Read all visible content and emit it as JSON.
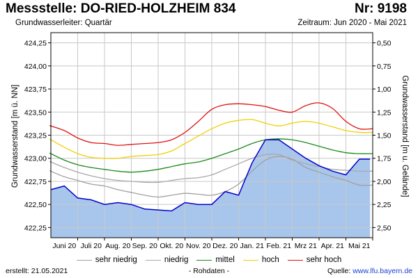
{
  "header": {
    "title": "Messstelle: DO-RIED-HOLZHEIM 834",
    "number": "Nr: 9198",
    "aquifer": "Grundwasserleiter: Quartär",
    "period": "Zeitraum: Jun 2020 - Mai 2021"
  },
  "footer": {
    "created_label": "erstellt:",
    "created_date": "21.05.2021",
    "raw_data": "- Rohdaten -",
    "source_label": "Quelle:",
    "source_url": "www.lfu.bayern.de"
  },
  "chart_data": {
    "type": "line",
    "ylabel": "Grundwasserstand [m ü. NN]",
    "y2label": "Grundwasserstand [m u. Gelände]",
    "ylim": [
      422.14,
      424.36
    ],
    "yticks": [
      "424,25",
      "424,00",
      "423,75",
      "423,50",
      "423,25",
      "423,00",
      "422,75",
      "422,50",
      "422,25"
    ],
    "ytick_values": [
      424.25,
      424.0,
      423.75,
      423.5,
      423.25,
      423.0,
      422.75,
      422.5,
      422.25
    ],
    "y2ticks": [
      "0,50",
      "0,75",
      "1,00",
      "1,25",
      "1,50",
      "1,75",
      "2,00",
      "2,25",
      "2,50"
    ],
    "categories": [
      "Juni 20",
      "Juli 20",
      "Aug. 20",
      "Sep. 20",
      "Okt. 20",
      "Nov. 20",
      "Dez. 20",
      "Jan. 21",
      "Feb. 21",
      "Mrz 21",
      "Apr. 21",
      "Mai 21"
    ],
    "grid": true,
    "legend_position": "bottom",
    "x": [
      0,
      0.5,
      1,
      1.5,
      2,
      2.5,
      3,
      3.5,
      4,
      4.5,
      5,
      5.5,
      6,
      6.5,
      7,
      7.5,
      8,
      8.5,
      9,
      9.5,
      10,
      10.5,
      11,
      11.5
    ],
    "series": [
      {
        "name": "sehr niedrig",
        "color": "#a0a0a0",
        "values": [
          422.86,
          422.8,
          422.76,
          422.72,
          422.7,
          422.66,
          422.63,
          422.6,
          422.58,
          422.6,
          422.62,
          422.61,
          422.6,
          422.64,
          422.72,
          422.86,
          422.98,
          423.02,
          422.99,
          422.9,
          422.85,
          422.8,
          422.76,
          422.71
        ]
      },
      {
        "name": "niedrig",
        "color": "#d0d0d0",
        "values": [
          422.96,
          422.9,
          422.85,
          422.81,
          422.78,
          422.76,
          422.75,
          422.74,
          422.74,
          422.76,
          422.78,
          422.79,
          422.82,
          422.88,
          422.94,
          423.0,
          423.04,
          423.04,
          422.98,
          422.94,
          422.91,
          422.88,
          422.87,
          422.86
        ]
      },
      {
        "name": "mittel",
        "color": "#1a8a1a",
        "values": [
          423.05,
          422.98,
          422.93,
          422.9,
          422.88,
          422.86,
          422.85,
          422.86,
          422.88,
          422.91,
          422.94,
          422.96,
          423.0,
          423.05,
          423.1,
          423.16,
          423.2,
          423.21,
          423.2,
          423.17,
          423.13,
          423.09,
          423.06,
          423.05
        ]
      },
      {
        "name": "hoch",
        "color": "#f0d000",
        "values": [
          423.2,
          423.12,
          423.05,
          423.01,
          423.0,
          423.0,
          423.02,
          423.03,
          423.04,
          423.08,
          423.16,
          423.24,
          423.32,
          423.38,
          423.41,
          423.42,
          423.38,
          423.35,
          423.38,
          423.4,
          423.38,
          423.34,
          423.3,
          423.28
        ]
      },
      {
        "name": "sehr hoch",
        "color": "#e01010",
        "values": [
          423.35,
          423.3,
          423.22,
          423.17,
          423.16,
          423.14,
          423.15,
          423.16,
          423.17,
          423.2,
          423.28,
          423.4,
          423.53,
          423.58,
          423.59,
          423.58,
          423.56,
          423.52,
          423.5,
          423.57,
          423.6,
          423.54,
          423.4,
          423.32
        ]
      },
      {
        "name": "Rohdaten",
        "color": "#0000cc",
        "values": [
          422.66,
          422.7,
          422.57,
          422.55,
          422.5,
          422.52,
          422.5,
          422.45,
          422.44,
          422.43,
          422.52,
          422.5,
          422.5,
          422.64,
          422.6,
          422.95,
          423.2,
          423.2,
          423.1,
          423.0,
          422.92,
          422.86,
          422.82,
          422.99
        ]
      }
    ]
  }
}
